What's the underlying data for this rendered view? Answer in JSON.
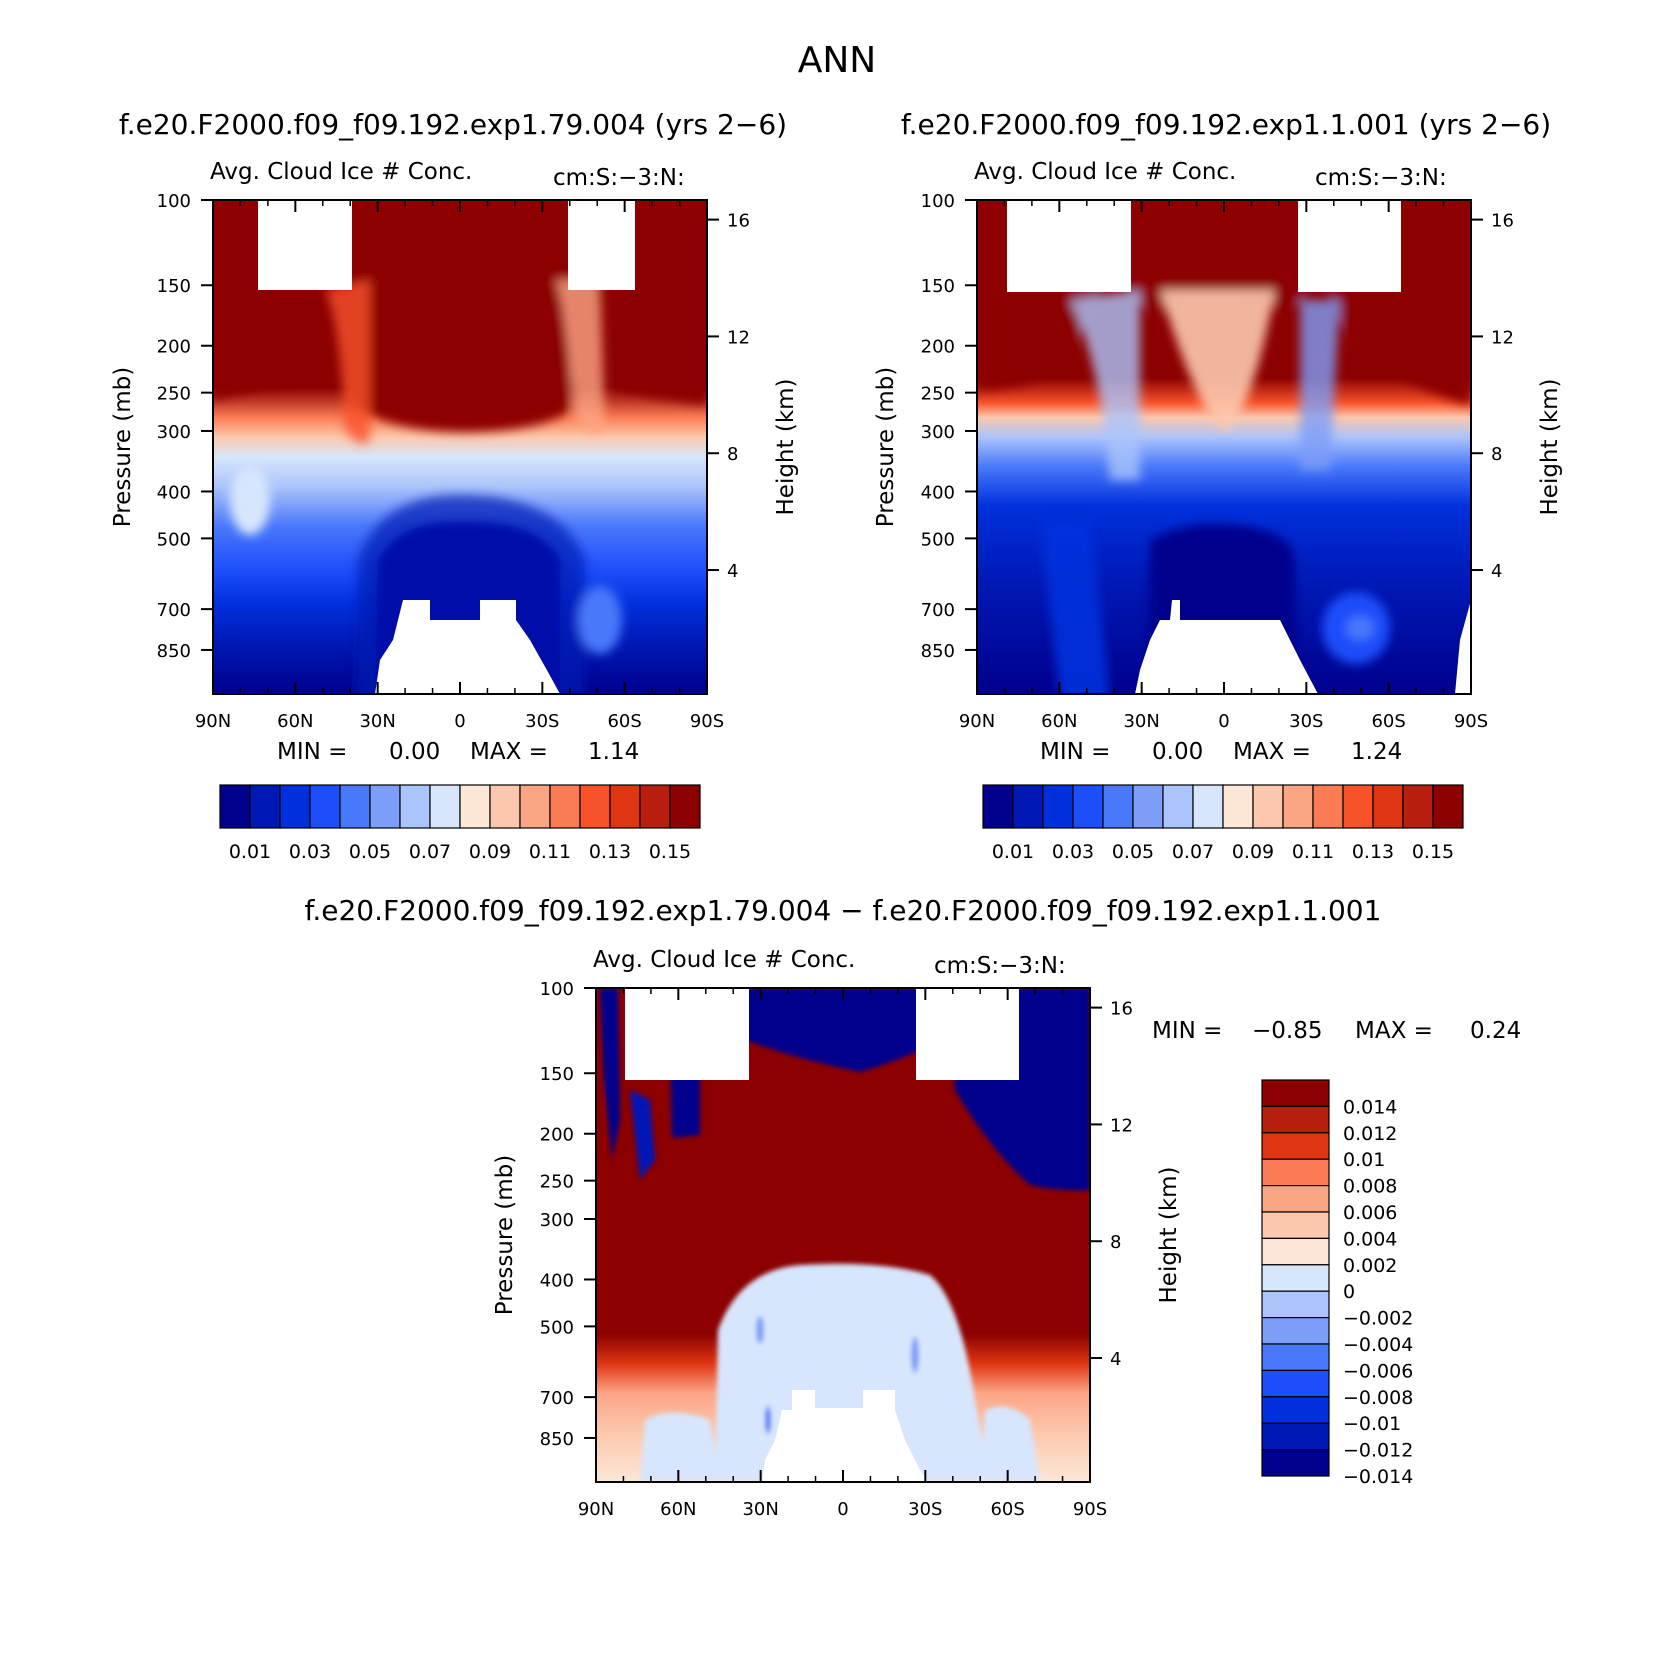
{
  "figure": {
    "title": "ANN",
    "diff_title": "f.e20.F2000.f09_f09.192.exp1.79.004 − f.e20.F2000.f09_f09.192.exp1.1.001"
  },
  "chart_data": [
    {
      "type": "heatmap",
      "panel": "top-left",
      "case_title": "f.e20.F2000.f09_f09.192.exp1.79.004 (yrs 2−6)",
      "variable": "Avg. Cloud Ice # Conc.",
      "units": "cm:S:−3:N:",
      "ylabel": "Pressure (mb)",
      "ylabel_right": "Height (km)",
      "x_ticks": [
        "90N",
        "60N",
        "30N",
        "0",
        "30S",
        "60S",
        "90S"
      ],
      "y_ticks": [
        "100",
        "150",
        "200",
        "250",
        "300",
        "400",
        "500",
        "700",
        "850"
      ],
      "y_ticks_right": [
        "16",
        "12",
        "8",
        "4"
      ],
      "min_label": "MIN =",
      "min_value": "0.00",
      "max_label": "MAX =",
      "max_value": "1.14",
      "levels": [
        "0.01",
        "0.03",
        "0.05",
        "0.07",
        "0.09",
        "0.11",
        "0.13",
        "0.15"
      ],
      "colors": [
        "#00008c",
        "#0018b4",
        "#0030dc",
        "#1c4efa",
        "#4a78fa",
        "#7d9ef8",
        "#abc4fb",
        "#d7e6fc",
        "#fde7d6",
        "#fcc8ad",
        "#fca585",
        "#fb7c54",
        "#f7522a",
        "#de3512",
        "#b81f0e",
        "#8c0000"
      ]
    },
    {
      "type": "heatmap",
      "panel": "top-right",
      "case_title": "f.e20.F2000.f09_f09.192.exp1.1.001 (yrs 2−6)",
      "variable": "Avg. Cloud Ice # Conc.",
      "units": "cm:S:−3:N:",
      "ylabel": "Pressure (mb)",
      "ylabel_right": "Height (km)",
      "x_ticks": [
        "90N",
        "60N",
        "30N",
        "0",
        "30S",
        "60S",
        "90S"
      ],
      "y_ticks": [
        "100",
        "150",
        "200",
        "250",
        "300",
        "400",
        "500",
        "700",
        "850"
      ],
      "y_ticks_right": [
        "16",
        "12",
        "8",
        "4"
      ],
      "min_label": "MIN =",
      "min_value": "0.00",
      "max_label": "MAX =",
      "max_value": "1.24",
      "levels": [
        "0.01",
        "0.03",
        "0.05",
        "0.07",
        "0.09",
        "0.11",
        "0.13",
        "0.15"
      ],
      "colors": [
        "#00008c",
        "#0018b4",
        "#0030dc",
        "#1c4efa",
        "#4a78fa",
        "#7d9ef8",
        "#abc4fb",
        "#d7e6fc",
        "#fde7d6",
        "#fcc8ad",
        "#fca585",
        "#fb7c54",
        "#f7522a",
        "#de3512",
        "#b81f0e",
        "#8c0000"
      ]
    },
    {
      "type": "heatmap",
      "panel": "bottom-difference",
      "variable": "Avg. Cloud Ice # Conc.",
      "units": "cm:S:−3:N:",
      "ylabel": "Pressure (mb)",
      "ylabel_right": "Height (km)",
      "x_ticks": [
        "90N",
        "60N",
        "30N",
        "0",
        "30S",
        "60S",
        "90S"
      ],
      "y_ticks": [
        "100",
        "150",
        "200",
        "250",
        "300",
        "400",
        "500",
        "700",
        "850"
      ],
      "y_ticks_right": [
        "16",
        "12",
        "8",
        "4"
      ],
      "min_label": "MIN =",
      "min_value": "−0.85",
      "max_label": "MAX =",
      "max_value": "0.24",
      "levels": [
        "0.014",
        "0.012",
        "0.01",
        "0.008",
        "0.006",
        "0.004",
        "0.002",
        "0",
        "−0.002",
        "−0.004",
        "−0.006",
        "−0.008",
        "−0.01",
        "−0.012",
        "−0.014"
      ],
      "colors": [
        "#8c0000",
        "#b81f0e",
        "#de3512",
        "#fb7c54",
        "#fca585",
        "#fcc8ad",
        "#fde7d6",
        "#d7e6fc",
        "#abc4fb",
        "#7d9ef8",
        "#4a78fa",
        "#1c4efa",
        "#0030dc",
        "#0018b4",
        "#00008c"
      ]
    }
  ]
}
